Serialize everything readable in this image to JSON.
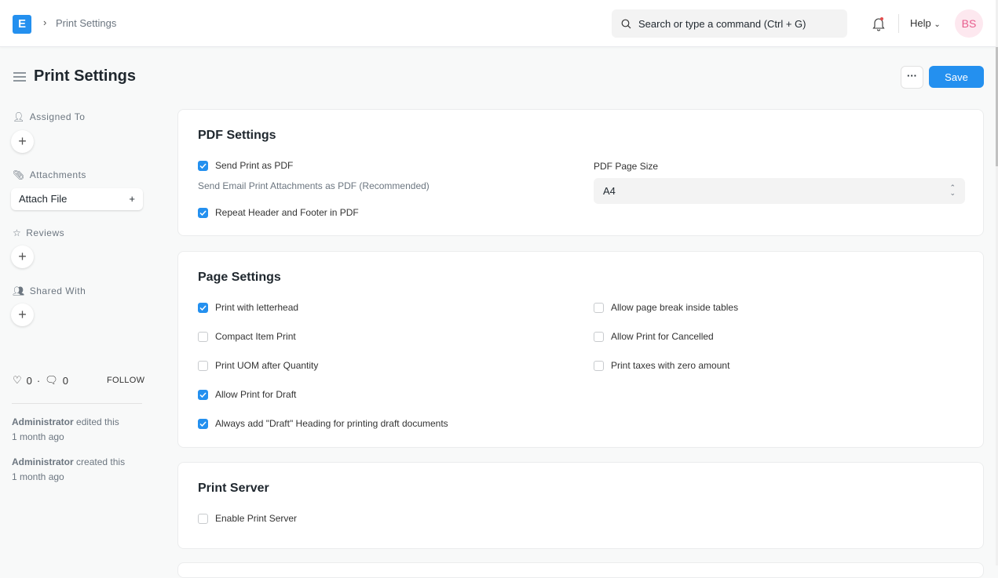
{
  "navbar": {
    "logo": "E",
    "breadcrumb": "Print Settings",
    "search_placeholder": "Search or type a command (Ctrl + G)",
    "help": "Help",
    "avatar": "BS",
    "accent": "#2490ef"
  },
  "page": {
    "title": "Print Settings",
    "more": "···",
    "save": "Save"
  },
  "sidebar": {
    "assigned_to": "Assigned To",
    "attachments": "Attachments",
    "attach_file": "Attach File",
    "reviews": "Reviews",
    "shared_with": "Shared With",
    "likes": "0",
    "comments": "0",
    "follow": "FOLLOW",
    "activity": [
      {
        "user": "Administrator",
        "action": "edited this",
        "time": "1 month ago"
      },
      {
        "user": "Administrator",
        "action": "created this",
        "time": "1 month ago"
      }
    ]
  },
  "pdf_settings": {
    "title": "PDF Settings",
    "send_print_as_pdf": {
      "label": "Send Print as PDF",
      "checked": true
    },
    "send_print_desc": "Send Email Print Attachments as PDF (Recommended)",
    "repeat_header_footer": {
      "label": "Repeat Header and Footer in PDF",
      "checked": true
    },
    "page_size_label": "PDF Page Size",
    "page_size_value": "A4"
  },
  "page_settings": {
    "title": "Page Settings",
    "left": [
      {
        "label": "Print with letterhead",
        "checked": true
      },
      {
        "label": "Compact Item Print",
        "checked": false
      },
      {
        "label": "Print UOM after Quantity",
        "checked": false
      },
      {
        "label": "Allow Print for Draft",
        "checked": true
      },
      {
        "label": "Always add \"Draft\" Heading for printing draft documents",
        "checked": true
      }
    ],
    "right": [
      {
        "label": "Allow page break inside tables",
        "checked": false
      },
      {
        "label": "Allow Print for Cancelled",
        "checked": false
      },
      {
        "label": "Print taxes with zero amount",
        "checked": false
      }
    ]
  },
  "print_server": {
    "title": "Print Server",
    "enable": {
      "label": "Enable Print Server",
      "checked": false
    }
  }
}
